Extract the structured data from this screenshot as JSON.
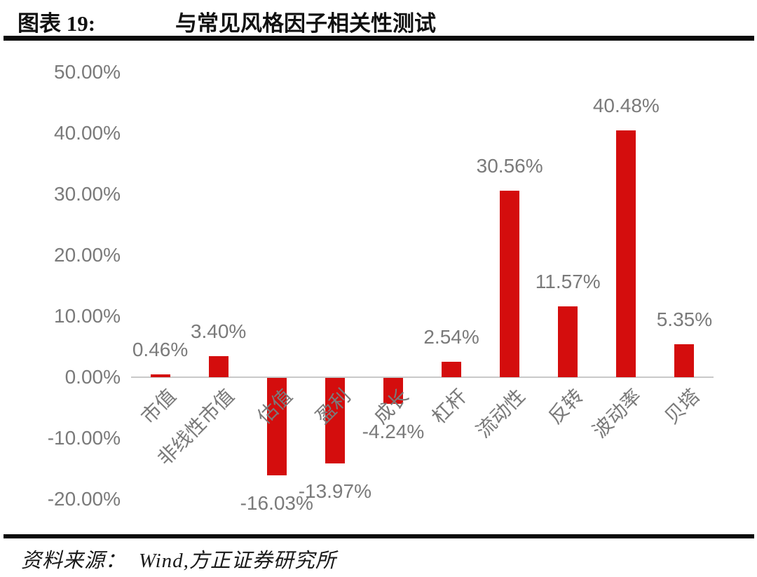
{
  "header": {
    "figure_label": "图表 19:",
    "title": "与常见风格因子相关性测试"
  },
  "chart_data": {
    "type": "bar",
    "title": "与常见风格因子相关性测试",
    "categories": [
      "市值",
      "非线性市值",
      "估值",
      "盈利",
      "成长",
      "杠杆",
      "流动性",
      "反转",
      "波动率",
      "贝塔"
    ],
    "values": [
      0.46,
      3.4,
      -16.03,
      -13.97,
      -4.24,
      2.54,
      30.56,
      11.57,
      40.48,
      5.35
    ],
    "data_labels": [
      "0.46%",
      "3.40%",
      "-16.03%",
      "-13.97%",
      "-4.24%",
      "2.54%",
      "30.56%",
      "11.57%",
      "40.48%",
      "5.35%"
    ],
    "y_ticks": [
      "50.00%",
      "40.00%",
      "30.00%",
      "20.00%",
      "10.00%",
      "0.00%",
      "-10.00%",
      "-20.00%"
    ],
    "y_tick_values": [
      50,
      40,
      30,
      20,
      10,
      0,
      -10,
      -20
    ],
    "ylim": [
      -20,
      50
    ],
    "xlabel": "",
    "ylabel": "",
    "grid": false,
    "legend": false,
    "bar_color": "#d40d0d",
    "label_color": "#7a7a7a",
    "axis_line_color": "#c9c9c9"
  },
  "footer": {
    "source_prefix": "资料来源：",
    "source_text": "Wind,方正证券研究所"
  }
}
